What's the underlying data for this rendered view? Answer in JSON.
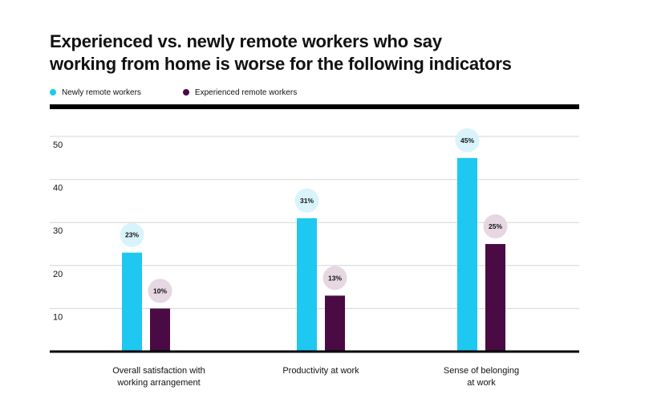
{
  "chart_data": {
    "type": "bar",
    "title_lines": [
      "Experienced vs. newly remote workers who say",
      "working from home is worse for the following indicators"
    ],
    "categories": [
      [
        "Overall satisfaction with",
        "working arrangement"
      ],
      [
        "Productivity at work"
      ],
      [
        "Sense of belonging",
        "at work"
      ]
    ],
    "series": [
      {
        "name": "Newly remote workers",
        "color": "#1ec8f0",
        "label_bg": "#d9f3fb",
        "values": [
          23,
          31,
          45
        ],
        "labels": [
          "23%",
          "31%",
          "45%"
        ]
      },
      {
        "name": "Experienced remote workers",
        "color": "#4a0a43",
        "label_bg": "#e6d7e2",
        "values": [
          10,
          13,
          25
        ],
        "labels": [
          "10%",
          "13%",
          "25%"
        ]
      }
    ],
    "yticks": [
      10,
      20,
      30,
      40,
      50
    ],
    "ylim": [
      0,
      50
    ],
    "grid": true,
    "legend": "top-left"
  }
}
